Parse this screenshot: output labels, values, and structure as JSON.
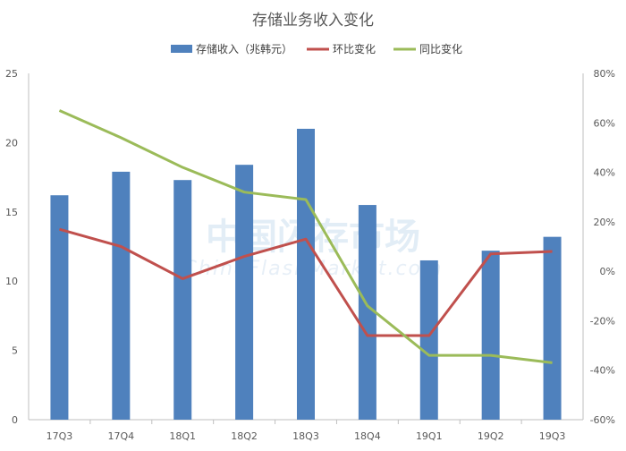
{
  "chart_data": {
    "type": "bar",
    "title": "存储业务收入变化",
    "categories": [
      "17Q3",
      "17Q4",
      "18Q1",
      "18Q2",
      "18Q3",
      "18Q4",
      "19Q1",
      "19Q2",
      "19Q3"
    ],
    "series": [
      {
        "name": "存储收入（兆韩元）",
        "type": "bar",
        "axis": "left",
        "values": [
          16.2,
          17.9,
          17.3,
          18.4,
          21.0,
          15.5,
          11.5,
          12.2,
          13.2
        ],
        "color": "#4f81bd"
      },
      {
        "name": "环比变化",
        "type": "line",
        "axis": "right",
        "values": [
          17,
          10,
          -3,
          6,
          13,
          -26,
          -26,
          7,
          8
        ],
        "color": "#c0504d"
      },
      {
        "name": "同比变化",
        "type": "line",
        "axis": "right",
        "values": [
          65,
          54,
          42,
          32,
          29,
          -14,
          -34,
          -34,
          -37
        ],
        "color": "#9bbb59"
      }
    ],
    "y_left": {
      "ylim": [
        0,
        25
      ],
      "ticks": [
        0,
        5,
        10,
        15,
        20,
        25
      ]
    },
    "y_right": {
      "ylim": [
        -60,
        80
      ],
      "ticks": [
        "-60%",
        "-40%",
        "-20%",
        "0%",
        "20%",
        "40%",
        "60%",
        "80%"
      ]
    },
    "legend_position": "top-center",
    "grid": false,
    "watermark": {
      "main": "中国闪存市场",
      "sub": "ChinaFlashMarket.com"
    }
  }
}
